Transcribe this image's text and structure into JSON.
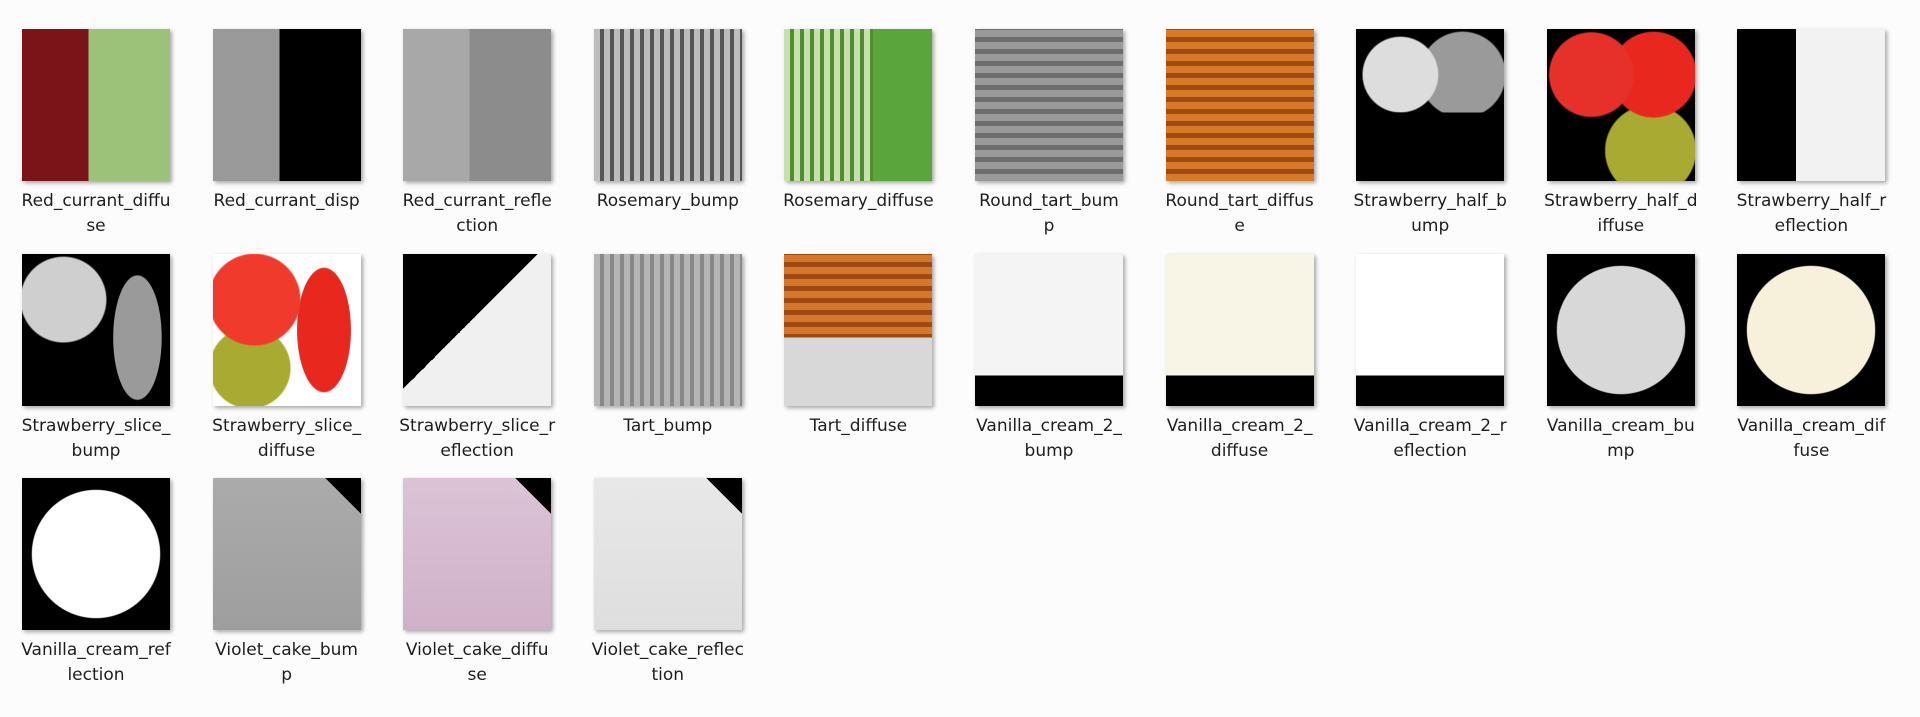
{
  "files": [
    {
      "lines": [
        "Red_currant_diffu",
        "se"
      ]
    },
    {
      "lines": [
        "Red_currant_disp"
      ]
    },
    {
      "lines": [
        "Red_currant_refle",
        "ction"
      ]
    },
    {
      "lines": [
        "Rosemary_bump"
      ]
    },
    {
      "lines": [
        "Rosemary_diffuse"
      ]
    },
    {
      "lines": [
        "Round_tart_bum",
        "p"
      ]
    },
    {
      "lines": [
        "Round_tart_diffus",
        "e"
      ]
    },
    {
      "lines": [
        "Strawberry_half_b",
        "ump"
      ]
    },
    {
      "lines": [
        "Strawberry_half_d",
        "iffuse"
      ]
    },
    {
      "lines": [
        "Strawberry_half_r",
        "eflection"
      ]
    },
    {
      "lines": [
        "Strawberry_slice_",
        "bump"
      ]
    },
    {
      "lines": [
        "Strawberry_slice_",
        "diffuse"
      ]
    },
    {
      "lines": [
        "Strawberry_slice_r",
        "eflection"
      ]
    },
    {
      "lines": [
        "Tart_bump"
      ]
    },
    {
      "lines": [
        "Tart_diffuse"
      ]
    },
    {
      "lines": [
        "Vanilla_cream_2_",
        "bump"
      ]
    },
    {
      "lines": [
        "Vanilla_cream_2_",
        "diffuse"
      ]
    },
    {
      "lines": [
        "Vanilla_cream_2_r",
        "eflection"
      ]
    },
    {
      "lines": [
        "Vanilla_cream_bu",
        "mp"
      ]
    },
    {
      "lines": [
        "Vanilla_cream_dif",
        "fuse"
      ]
    },
    {
      "lines": [
        "Vanilla_cream_ref",
        "lection"
      ]
    },
    {
      "lines": [
        "Violet_cake_bum",
        "p"
      ]
    },
    {
      "lines": [
        "Violet_cake_diffu",
        "se"
      ]
    },
    {
      "lines": [
        "Violet_cake_reflec",
        "tion"
      ]
    }
  ]
}
